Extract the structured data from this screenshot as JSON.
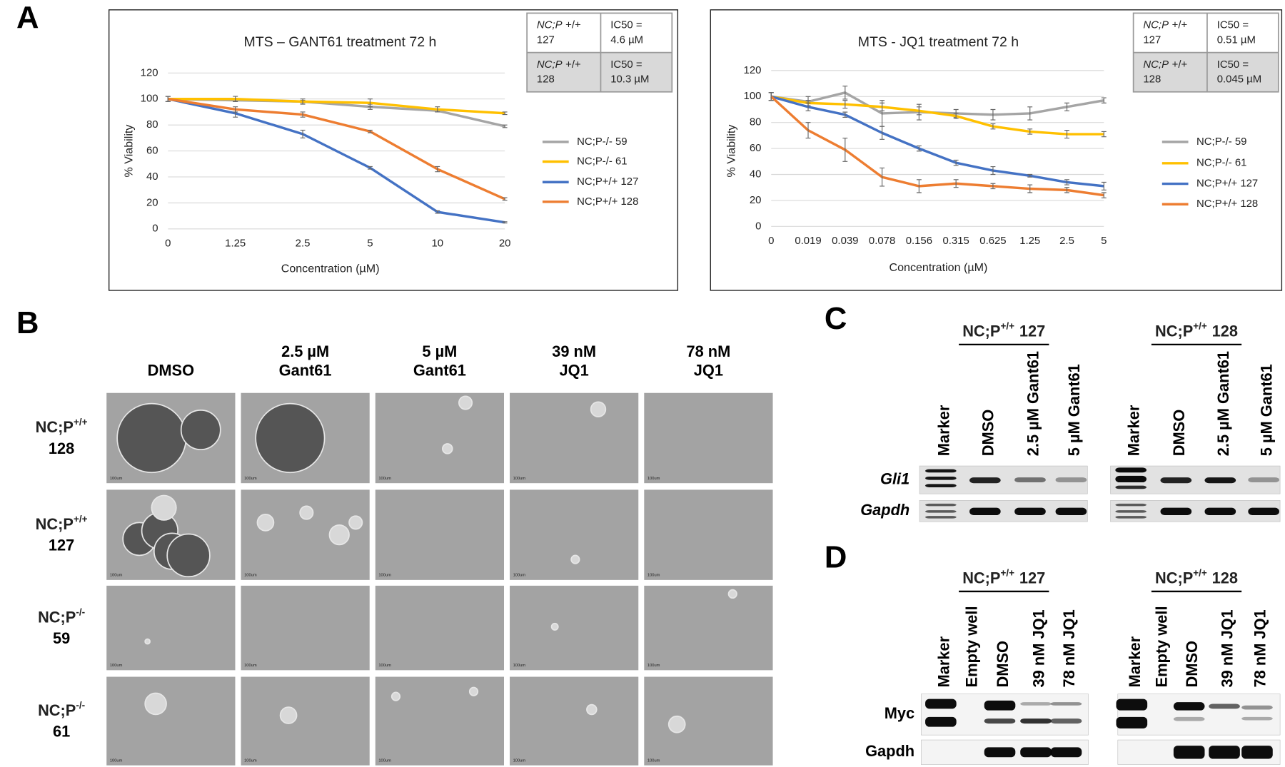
{
  "panel_labels": [
    "A",
    "B",
    "C",
    "D"
  ],
  "chart_data": [
    {
      "type": "line",
      "title": "MTS – GANT61 treatment 72 h",
      "x_label": "Concentration (µM)",
      "y_label": "% Viability",
      "categories": [
        "0",
        "1.25",
        "2.5",
        "5",
        "10",
        "20"
      ],
      "ylim": [
        0,
        120
      ],
      "yticks": [
        0,
        20,
        40,
        60,
        80,
        100,
        120
      ],
      "grid": true,
      "legend_position": "right",
      "series": [
        {
          "name": "NC;P-/- 59",
          "color": "#a5a5a5",
          "values": [
            100,
            99,
            98,
            94,
            91,
            79
          ],
          "errors": [
            2,
            1,
            1,
            2,
            1,
            1
          ]
        },
        {
          "name": "NC;P-/- 61",
          "color": "#ffc000",
          "values": [
            100,
            100,
            98,
            97,
            92,
            89
          ],
          "errors": [
            2,
            2,
            2,
            3,
            2,
            1
          ]
        },
        {
          "name": "NC;P+/+ 127",
          "color": "#4472c4",
          "values": [
            100,
            89,
            73,
            47,
            13,
            5
          ],
          "errors": [
            2,
            3,
            3,
            1,
            1,
            0.5
          ]
        },
        {
          "name": "NC;P+/+ 128",
          "color": "#ed7d31",
          "values": [
            100,
            92,
            88,
            75,
            46,
            23
          ],
          "errors": [
            2,
            2,
            2,
            1,
            2,
            1
          ]
        }
      ],
      "ic50_table": [
        [
          {
            "strain": "NC;P",
            "genotype": "+/+",
            "id": "127"
          },
          {
            "label": "IC50 =",
            "value": "4.6 µM"
          }
        ],
        [
          {
            "strain": "NC;P",
            "genotype": "+/+",
            "id": "128"
          },
          {
            "label": "IC50 =",
            "value": "10.3 µM"
          }
        ]
      ]
    },
    {
      "type": "line",
      "title": "MTS - JQ1 treatment 72 h",
      "x_label": "Concentration (µM)",
      "y_label": "% Viability",
      "categories": [
        "0",
        "0.019",
        "0.039",
        "0.078",
        "0.156",
        "0.315",
        "0.625",
        "1.25",
        "2.5",
        "5"
      ],
      "ylim": [
        0,
        120
      ],
      "yticks": [
        0,
        20,
        40,
        60,
        80,
        100,
        120
      ],
      "grid": true,
      "legend_position": "right",
      "series": [
        {
          "name": "NC;P-/- 59",
          "color": "#a5a5a5",
          "values": [
            100,
            96,
            103,
            87,
            88,
            87,
            86,
            87,
            92,
            97
          ],
          "errors": [
            3,
            4,
            5,
            10,
            6,
            3,
            4,
            5,
            3,
            2
          ]
        },
        {
          "name": "NC;P-/- 61",
          "color": "#ffc000",
          "values": [
            100,
            95,
            94,
            92,
            89,
            85,
            77,
            73,
            71,
            71
          ],
          "errors": [
            3,
            2,
            3,
            3,
            3,
            2,
            2,
            2,
            3,
            2
          ]
        },
        {
          "name": "NC;P+/+ 127",
          "color": "#4472c4",
          "values": [
            100,
            92,
            86,
            72,
            60,
            49,
            43,
            39,
            34,
            31
          ],
          "errors": [
            3,
            3,
            2,
            5,
            2,
            2,
            3,
            1,
            2,
            3
          ]
        },
        {
          "name": "NC;P+/+ 128",
          "color": "#ed7d31",
          "values": [
            100,
            74,
            59,
            38,
            31,
            33,
            31,
            29,
            28,
            24
          ],
          "errors": [
            3,
            6,
            9,
            7,
            5,
            3,
            2,
            3,
            2,
            2
          ]
        }
      ],
      "ic50_table": [
        [
          {
            "strain": "NC;P",
            "genotype": "+/+",
            "id": "127"
          },
          {
            "label": "IC50 =",
            "value": "0.51 µM"
          }
        ],
        [
          {
            "strain": "NC;P",
            "genotype": "+/+",
            "id": "128"
          },
          {
            "label": "IC50 =",
            "value": "0.045 µM"
          }
        ]
      ]
    }
  ],
  "panel_b": {
    "columns": [
      [
        "DMSO"
      ],
      [
        "2.5 µM",
        "Gant61"
      ],
      [
        "5 µM",
        "Gant61"
      ],
      [
        "39 nM",
        "JQ1"
      ],
      [
        "78 nM",
        "JQ1"
      ]
    ],
    "rows": [
      {
        "prefix": "NC;P",
        "sup": "+/+",
        "id": "128"
      },
      {
        "prefix": "NC;P",
        "sup": "+/+",
        "id": "127"
      },
      {
        "prefix": "NC;P",
        "sup": "-/-",
        "id": "59"
      },
      {
        "prefix": "NC;P",
        "sup": "-/-",
        "id": "61"
      }
    ],
    "scale_bar": "100um"
  },
  "panel_c": {
    "groups": [
      {
        "prefix": "NC;P",
        "sup": "+/+",
        "id": "127"
      },
      {
        "prefix": "NC;P",
        "sup": "+/+",
        "id": "128"
      }
    ],
    "lanes": [
      "Marker",
      "DMSO",
      "2.5 µM Gant61",
      "5 µM Gant61"
    ],
    "rows": [
      "Gli1",
      "Gapdh"
    ]
  },
  "panel_d": {
    "groups": [
      {
        "prefix": "NC;P",
        "sup": "+/+",
        "id": "127"
      },
      {
        "prefix": "NC;P",
        "sup": "+/+",
        "id": "128"
      }
    ],
    "lanes": [
      "Marker",
      "Empty well",
      "DMSO",
      "39 nM JQ1",
      "78 nM JQ1"
    ],
    "rows": [
      "Myc",
      "Gapdh"
    ]
  }
}
